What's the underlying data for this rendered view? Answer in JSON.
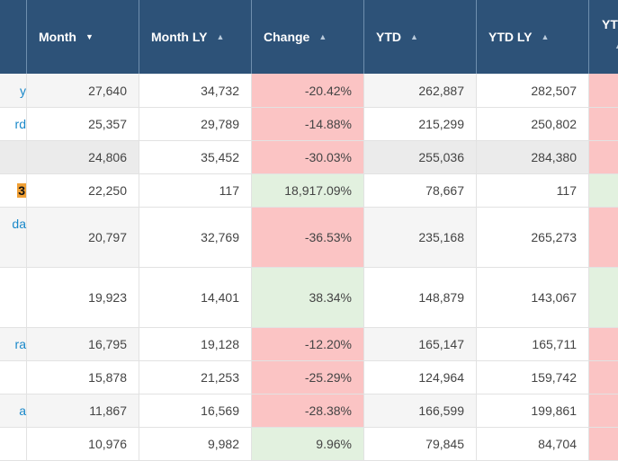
{
  "colors": {
    "header_bg": "#2d5278",
    "negative_bg": "#fbc4c4",
    "positive_bg": "#e2f1df",
    "link_text": "#1a88c9",
    "badge_bg": "#f0a036"
  },
  "header": {
    "columns": [
      {
        "label": "",
        "sort": "none"
      },
      {
        "label": "Month",
        "sort": "descending",
        "arrow": "▼"
      },
      {
        "label": "Month LY",
        "sort": "ascending",
        "arrow": "▲"
      },
      {
        "label": "Change",
        "sort": "ascending",
        "arrow": "▲"
      },
      {
        "label": "YTD",
        "sort": "ascending",
        "arrow": "▲"
      },
      {
        "label": "YTD LY",
        "sort": "ascending",
        "arrow": "▲"
      },
      {
        "label": "YT",
        "sort": "ascending",
        "arrow": "▲"
      }
    ]
  },
  "rows": [
    {
      "name": "y",
      "month": "27,640",
      "month_ly": "34,732",
      "change": "-20.42%",
      "ytd": "262,887",
      "ytd_ly": "282,507",
      "trend": "negative",
      "ytd_trend": "negative"
    },
    {
      "name": "rd",
      "month": "25,357",
      "month_ly": "29,789",
      "change": "-14.88%",
      "ytd": "215,299",
      "ytd_ly": "250,802",
      "trend": "negative",
      "ytd_trend": "negative"
    },
    {
      "name": "",
      "month": "24,806",
      "month_ly": "35,452",
      "change": "-30.03%",
      "ytd": "255,036",
      "ytd_ly": "284,380",
      "trend": "negative",
      "ytd_trend": "negative",
      "highlighted": true
    },
    {
      "name": "3",
      "month": "22,250",
      "month_ly": "117",
      "change": "18,917.09%",
      "ytd": "78,667",
      "ytd_ly": "117",
      "trend": "positive",
      "ytd_trend": "positive",
      "badge": true
    },
    {
      "name": "da",
      "month": "20,797",
      "month_ly": "32,769",
      "change": "-36.53%",
      "ytd": "235,168",
      "ytd_ly": "265,273",
      "trend": "negative",
      "ytd_trend": "negative"
    },
    {
      "name": "",
      "month": "19,923",
      "month_ly": "14,401",
      "change": "38.34%",
      "ytd": "148,879",
      "ytd_ly": "143,067",
      "trend": "positive",
      "ytd_trend": "positive"
    },
    {
      "name": "ra",
      "month": "16,795",
      "month_ly": "19,128",
      "change": "-12.20%",
      "ytd": "165,147",
      "ytd_ly": "165,711",
      "trend": "negative",
      "ytd_trend": "negative"
    },
    {
      "name": "",
      "month": "15,878",
      "month_ly": "21,253",
      "change": "-25.29%",
      "ytd": "124,964",
      "ytd_ly": "159,742",
      "trend": "negative",
      "ytd_trend": "negative"
    },
    {
      "name": "a",
      "month": "11,867",
      "month_ly": "16,569",
      "change": "-28.38%",
      "ytd": "166,599",
      "ytd_ly": "199,861",
      "trend": "negative",
      "ytd_trend": "negative"
    },
    {
      "name": "",
      "month": "10,976",
      "month_ly": "9,982",
      "change": "9.96%",
      "ytd": "79,845",
      "ytd_ly": "84,704",
      "trend": "positive",
      "ytd_trend": "negative"
    }
  ]
}
